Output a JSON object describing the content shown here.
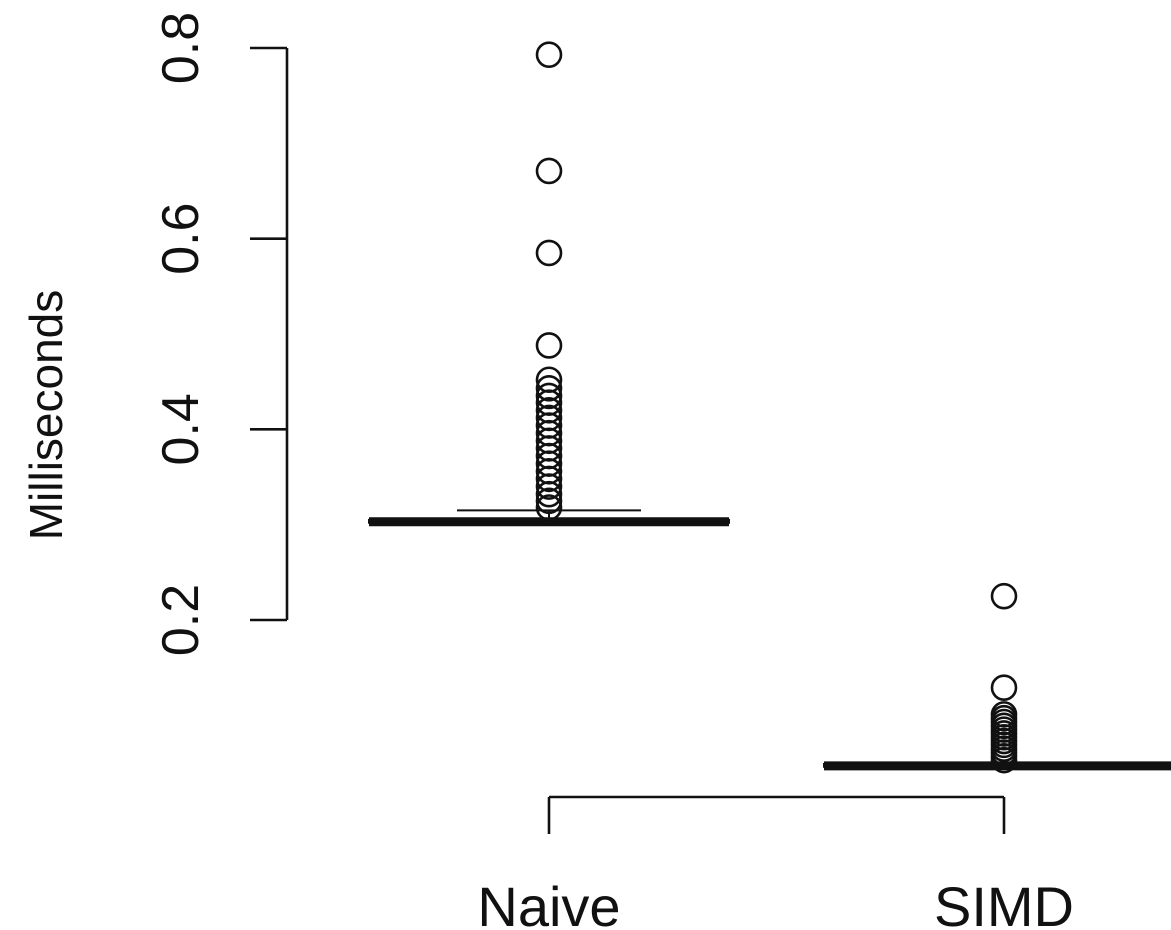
{
  "chart_data": {
    "type": "boxplot",
    "title": "",
    "xlabel": "",
    "ylabel": "Milliseconds",
    "ylim": [
      0.2,
      0.8
    ],
    "yticks": [
      0.2,
      0.4,
      0.6,
      0.8
    ],
    "ytick_labels": [
      "0.2",
      "0.4",
      "0.6",
      "0.8"
    ],
    "grid": false,
    "categories": [
      "Naive",
      "SIMD"
    ],
    "series": [
      {
        "category": "Naive",
        "q1": 0.302,
        "median": 0.303,
        "q3": 0.305,
        "whisker_low": 0.301,
        "whisker_high": 0.315,
        "outliers": [
          0.793,
          0.671,
          0.585,
          0.488,
          0.452,
          0.443,
          0.435,
          0.428,
          0.42,
          0.412,
          0.404,
          0.396,
          0.388,
          0.38,
          0.372,
          0.364,
          0.356,
          0.348,
          0.34,
          0.332,
          0.325,
          0.318
        ]
      },
      {
        "category": "SIMD",
        "q1": 0.046,
        "median": 0.047,
        "q3": 0.049,
        "whisker_low": 0.045,
        "whisker_high": 0.05,
        "outliers": [
          0.225,
          0.129,
          0.101,
          0.097,
          0.093,
          0.089,
          0.085,
          0.081,
          0.077,
          0.073,
          0.069,
          0.065,
          0.061,
          0.057,
          0.053
        ]
      }
    ]
  }
}
